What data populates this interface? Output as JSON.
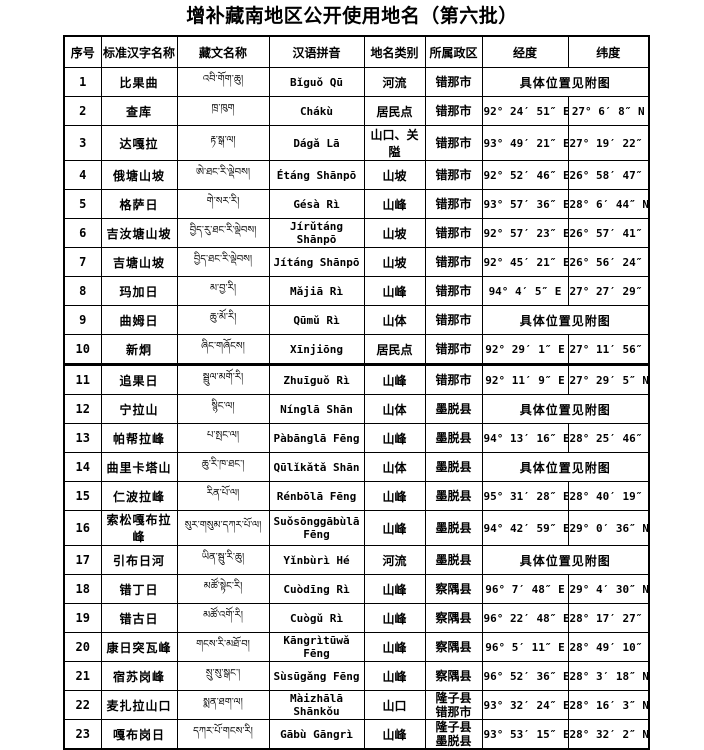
{
  "title": "增补藏南地区公开使用地名（第六批）",
  "table": {
    "headers": [
      "序号",
      "标准汉字名称",
      "藏文名称",
      "汉语拼音",
      "地名类别",
      "所属政区",
      "经度",
      "纬度"
    ],
    "see_map_note": "具体位置见附图",
    "rows": [
      {
        "no": "1",
        "name": "比果曲",
        "tibetan": "འབི་གོག་ཆུ།",
        "pinyin": "Bǐguǒ Qū",
        "category": "河流",
        "region": [
          "错那市"
        ],
        "see_map": true,
        "lon": "",
        "lat": ""
      },
      {
        "no": "2",
        "name": "查库",
        "tibetan": "ཁྲ་ཁུག",
        "pinyin": "Chákù",
        "category": "居民点",
        "region": [
          "错那市"
        ],
        "see_map": false,
        "lon": "92° 24′ 51″ E",
        "lat": "27° 6′ 8″ N"
      },
      {
        "no": "3",
        "name": "达嘎拉",
        "tibetan": "རྟ་སྒ་ལ།",
        "pinyin": "Dágǎ Lā",
        "category": "山口、关隘",
        "region": [
          "错那市"
        ],
        "see_map": false,
        "lon": "93° 49′ 21″ E",
        "lat": "27° 19′ 22″ N"
      },
      {
        "no": "4",
        "name": "俄塘山坡",
        "tibetan": "ཨེ་ཐང་རི་ལྡེབས།",
        "pinyin": "Étáng Shānpō",
        "category": "山坡",
        "region": [
          "错那市"
        ],
        "see_map": false,
        "lon": "92° 52′ 46″ E",
        "lat": "26° 58′ 47″ N"
      },
      {
        "no": "5",
        "name": "格萨日",
        "tibetan": "གེ་སར་རི།",
        "pinyin": "Gésà Rì",
        "category": "山峰",
        "region": [
          "错那市"
        ],
        "see_map": false,
        "lon": "93° 57′ 36″ E",
        "lat": "28° 6′ 44″ N"
      },
      {
        "no": "6",
        "name": "吉汝塘山坡",
        "tibetan": "བྱིད་རུ་ཐང་རི་ལྡེབས།",
        "pinyin": "Jírǔtáng Shānpō",
        "category": "山坡",
        "region": [
          "错那市"
        ],
        "see_map": false,
        "lon": "92° 57′ 23″ E",
        "lat": "26° 57′ 41″ N"
      },
      {
        "no": "7",
        "name": "吉塘山坡",
        "tibetan": "བྱིད་ཐང་རི་ལྡེབས།",
        "pinyin": "Jítáng Shānpō",
        "category": "山坡",
        "region": [
          "错那市"
        ],
        "see_map": false,
        "lon": "92° 45′ 21″ E",
        "lat": "26° 56′ 24″ N"
      },
      {
        "no": "8",
        "name": "玛加日",
        "tibetan": "མ་བྱ་རི།",
        "pinyin": "Mǎjiā Rì",
        "category": "山峰",
        "region": [
          "错那市"
        ],
        "see_map": false,
        "lon": "94° 4′ 5″ E",
        "lat": "27° 27′ 29″ N"
      },
      {
        "no": "9",
        "name": "曲姆日",
        "tibetan": "ཆུ་མོ་རི།",
        "pinyin": "Qūmǔ Rì",
        "category": "山体",
        "region": [
          "错那市"
        ],
        "see_map": true,
        "lon": "",
        "lat": ""
      },
      {
        "no": "10",
        "name": "新炯",
        "tibetan": "ཞིང་གཞོངས།",
        "pinyin": "Xīnjiōng",
        "category": "居民点",
        "region": [
          "错那市"
        ],
        "see_map": false,
        "lon": "92° 29′ 1″ E",
        "lat": "27° 11′ 56″ N",
        "thick_bottom": true
      },
      {
        "no": "11",
        "name": "追果日",
        "tibetan": "སྦྲུལ་མགོ་རི།",
        "pinyin": "Zhuīguǒ Rì",
        "category": "山峰",
        "region": [
          "错那市"
        ],
        "see_map": false,
        "lon": "92° 11′ 9″ E",
        "lat": "27° 29′ 5″ N"
      },
      {
        "no": "12",
        "name": "宁拉山",
        "tibetan": "སྙིང་ལ།",
        "pinyin": "Nínglā Shān",
        "category": "山体",
        "region": [
          "墨脱县"
        ],
        "see_map": true,
        "lon": "",
        "lat": ""
      },
      {
        "no": "13",
        "name": "帕帮拉峰",
        "tibetan": "པ་སྤང་ལ།",
        "pinyin": "Pàbānglā Fēng",
        "category": "山峰",
        "region": [
          "墨脱县"
        ],
        "see_map": false,
        "lon": "94° 13′ 16″ E",
        "lat": "28° 25′ 46″ N"
      },
      {
        "no": "14",
        "name": "曲里卡塔山",
        "tibetan": "ཆུ་རི་ཁ་ཐང་།",
        "pinyin": "Qūlǐkǎtǎ Shān",
        "category": "山体",
        "region": [
          "墨脱县"
        ],
        "see_map": true,
        "lon": "",
        "lat": ""
      },
      {
        "no": "15",
        "name": "仁波拉峰",
        "tibetan": "རིན་པོ་ལ།",
        "pinyin": "Rénbōlā Fēng",
        "category": "山峰",
        "region": [
          "墨脱县"
        ],
        "see_map": false,
        "lon": "95° 31′ 28″ E",
        "lat": "28° 40′ 19″ N"
      },
      {
        "no": "16",
        "name": "索松嘎布拉峰",
        "tibetan": "སུར་གསུམ་དཀར་པོ་ལ།",
        "pinyin": "Suǒsōnggābùlā Fēng",
        "category": "山峰",
        "region": [
          "墨脱县"
        ],
        "see_map": false,
        "lon": "94° 42′ 59″ E",
        "lat": "29° 0′ 36″ N"
      },
      {
        "no": "17",
        "name": "引布日河",
        "tibetan": "ཡིན་སྦུ་རི་ཆུ།",
        "pinyin": "Yǐnbùrì Hé",
        "category": "河流",
        "region": [
          "墨脱县"
        ],
        "see_map": true,
        "lon": "",
        "lat": ""
      },
      {
        "no": "18",
        "name": "错丁日",
        "tibetan": "མཚོ་སྟེང་རི།",
        "pinyin": "Cuòdīng Rì",
        "category": "山峰",
        "region": [
          "察隅县"
        ],
        "see_map": false,
        "lon": "96° 7′ 48″ E",
        "lat": "29° 4′ 30″ N"
      },
      {
        "no": "19",
        "name": "错古日",
        "tibetan": "མཚོ་འགོ་རི།",
        "pinyin": "Cuògǔ Rì",
        "category": "山峰",
        "region": [
          "察隅县"
        ],
        "see_map": false,
        "lon": "96° 22′ 48″ E",
        "lat": "28° 17′ 27″ N"
      },
      {
        "no": "20",
        "name": "康日突瓦峰",
        "tibetan": "གངས་རི་མཐོ་བ།",
        "pinyin": "Kāngrìtūwǎ Fēng",
        "category": "山峰",
        "region": [
          "察隅县"
        ],
        "see_map": false,
        "lon": "96° 5′ 11″ E",
        "lat": "28° 49′ 10″ N"
      },
      {
        "no": "21",
        "name": "宿苏岗峰",
        "tibetan": "སྲུ་སུ་སྒང་།",
        "pinyin": "Sùsūgǎng Fēng",
        "category": "山峰",
        "region": [
          "察隅县"
        ],
        "see_map": false,
        "lon": "96° 52′ 36″ E",
        "lat": "28° 3′ 18″ N"
      },
      {
        "no": "22",
        "name": "麦扎拉山口",
        "tibetan": "སྨན་ཐག་ལ།",
        "pinyin": "Màizhālā Shānkǒu",
        "category": "山口",
        "region": [
          "隆子县",
          "错那市"
        ],
        "see_map": false,
        "lon": "93° 32′ 24″ E",
        "lat": "28° 16′ 3″ N"
      },
      {
        "no": "23",
        "name": "嘎布岗日",
        "tibetan": "དཀར་པོ་གངས་རི།",
        "pinyin": "Gābù Gāngrì",
        "category": "山峰",
        "region": [
          "隆子县",
          "墨脱县"
        ],
        "see_map": false,
        "lon": "93° 53′ 15″ E",
        "lat": "28° 32′ 2″ N"
      }
    ]
  }
}
